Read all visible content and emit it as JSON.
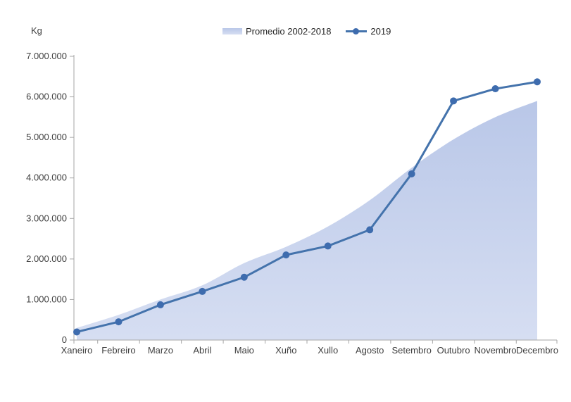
{
  "chart_data": {
    "type": "area",
    "title": "",
    "ylabel": "Kg",
    "xlabel": "",
    "categories": [
      "Xaneiro",
      "Febreiro",
      "Marzo",
      "Abril",
      "Maio",
      "Xuño",
      "Xullo",
      "Agosto",
      "Setembro",
      "Outubro",
      "Novembro",
      "Decembro"
    ],
    "series": [
      {
        "name": "Promedio 2002-2018",
        "type": "area",
        "fill_top": "#b9c7e8",
        "fill_bottom": "#d6def2",
        "values": [
          300000,
          620000,
          1000000,
          1350000,
          1900000,
          2300000,
          2800000,
          3450000,
          4250000,
          4950000,
          5500000,
          5900000
        ]
      },
      {
        "name": "2019",
        "type": "line",
        "color": "#4473ac",
        "marker_color": "#3e6cae",
        "values": [
          200000,
          450000,
          870000,
          1200000,
          1550000,
          2100000,
          2320000,
          2720000,
          4100000,
          5900000,
          6200000,
          6370000
        ]
      }
    ],
    "ylim": [
      0,
      7000000
    ],
    "ytick_step": 1000000,
    "ytick_labels": [
      "0",
      "1.000.000",
      "2.000.000",
      "3.000.000",
      "4.000.000",
      "5.000.000",
      "6.000.000",
      "7.000.000"
    ],
    "grid": false,
    "legend_position": "top-center",
    "axis_color": "#a6a6a6",
    "text_color": "#3f3f3f"
  }
}
